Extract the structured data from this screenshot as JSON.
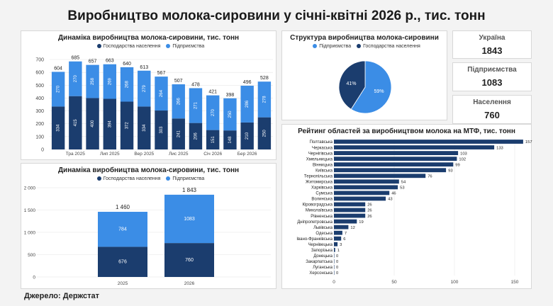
{
  "title": "Виробництво молока-сировини у січні-квітні 2026 р., тис. тонн",
  "source": "Джерело: Держстат",
  "colors": {
    "households": "#1b3d6e",
    "enterprises": "#3b8de6"
  },
  "legend": {
    "households": "Господарства населення",
    "enterprises": "Підприємства"
  },
  "kpis": [
    {
      "label": "Україна",
      "value": "1843"
    },
    {
      "label": "Підприємства",
      "value": "1083"
    },
    {
      "label": "Населення",
      "value": "760"
    }
  ],
  "chart_data": [
    {
      "type": "bar",
      "title": "Динаміка виробництва молока-сировини, тис. тонн",
      "stacked": true,
      "categories": [
        "",
        "Тра 2025",
        "",
        "Лип 2025",
        "",
        "Вер 2025",
        "",
        "Лис 2025",
        "",
        "Січ 2026",
        "",
        "Бер 2026",
        ""
      ],
      "series": [
        {
          "name": "Господарства населення",
          "values": [
            334,
            415,
            400,
            394,
            372,
            334,
            303,
            241,
            206,
            151,
            148,
            210,
            250
          ]
        },
        {
          "name": "Підприємства",
          "values": [
            270,
            270,
            258,
            269,
            268,
            279,
            264,
            266,
            271,
            270,
            250,
            286,
            278
          ]
        }
      ],
      "totals": [
        604,
        685,
        657,
        663,
        640,
        613,
        567,
        507,
        478,
        421,
        398,
        496,
        528
      ],
      "ylim": [
        0,
        700
      ],
      "yticks": [
        0,
        100,
        200,
        300,
        400,
        500,
        600,
        700
      ],
      "grid": true,
      "legend_position": "top"
    },
    {
      "type": "bar",
      "title": "Динаміка виробництва молока-сировини, тис. тонн",
      "stacked": true,
      "categories": [
        "2025",
        "2026"
      ],
      "series": [
        {
          "name": "Господарства населення",
          "values": [
            676,
            760
          ]
        },
        {
          "name": "Підприємства",
          "values": [
            784,
            1083
          ]
        }
      ],
      "totals": [
        "1 460",
        "1 843"
      ],
      "ylim": [
        0,
        2000
      ],
      "yticks": [
        "0",
        "500",
        "1 000",
        "1 500",
        "2 000"
      ],
      "grid": true,
      "legend_position": "top"
    },
    {
      "type": "pie",
      "title": "Структура виробництва молока-сировини",
      "labels": [
        "Підприємства",
        "Господарства населення"
      ],
      "values": [
        59,
        41
      ],
      "value_labels": [
        "59%",
        "41%"
      ],
      "legend_position": "top"
    },
    {
      "type": "bar",
      "orientation": "horizontal",
      "title": "Рейтинг областей за виробництвом молока на МТФ, тис. тонн",
      "categories": [
        "Полтавська",
        "Черкаська",
        "Чернігівська",
        "Хмельницька",
        "Вінницька",
        "Київська",
        "Тернопільська",
        "Житомирська",
        "Харківська",
        "Сумська",
        "Волинська",
        "Кіровоградська",
        "Миколаївська",
        "Рівненська",
        "Дніпропетровська",
        "Львівська",
        "Одеська",
        "Івано-Франківська",
        "Чернівецька",
        "Запорізька",
        "Донецька",
        "Закарпатська",
        "Луганська",
        "Херсонська"
      ],
      "values": [
        157,
        133,
        103,
        102,
        99,
        93,
        76,
        54,
        53,
        46,
        43,
        26,
        26,
        26,
        19,
        12,
        7,
        6,
        3,
        1,
        0,
        0,
        0,
        0
      ],
      "xlim": [
        0,
        160
      ],
      "xticks": [
        0,
        50,
        100,
        150
      ],
      "grid": true
    }
  ]
}
